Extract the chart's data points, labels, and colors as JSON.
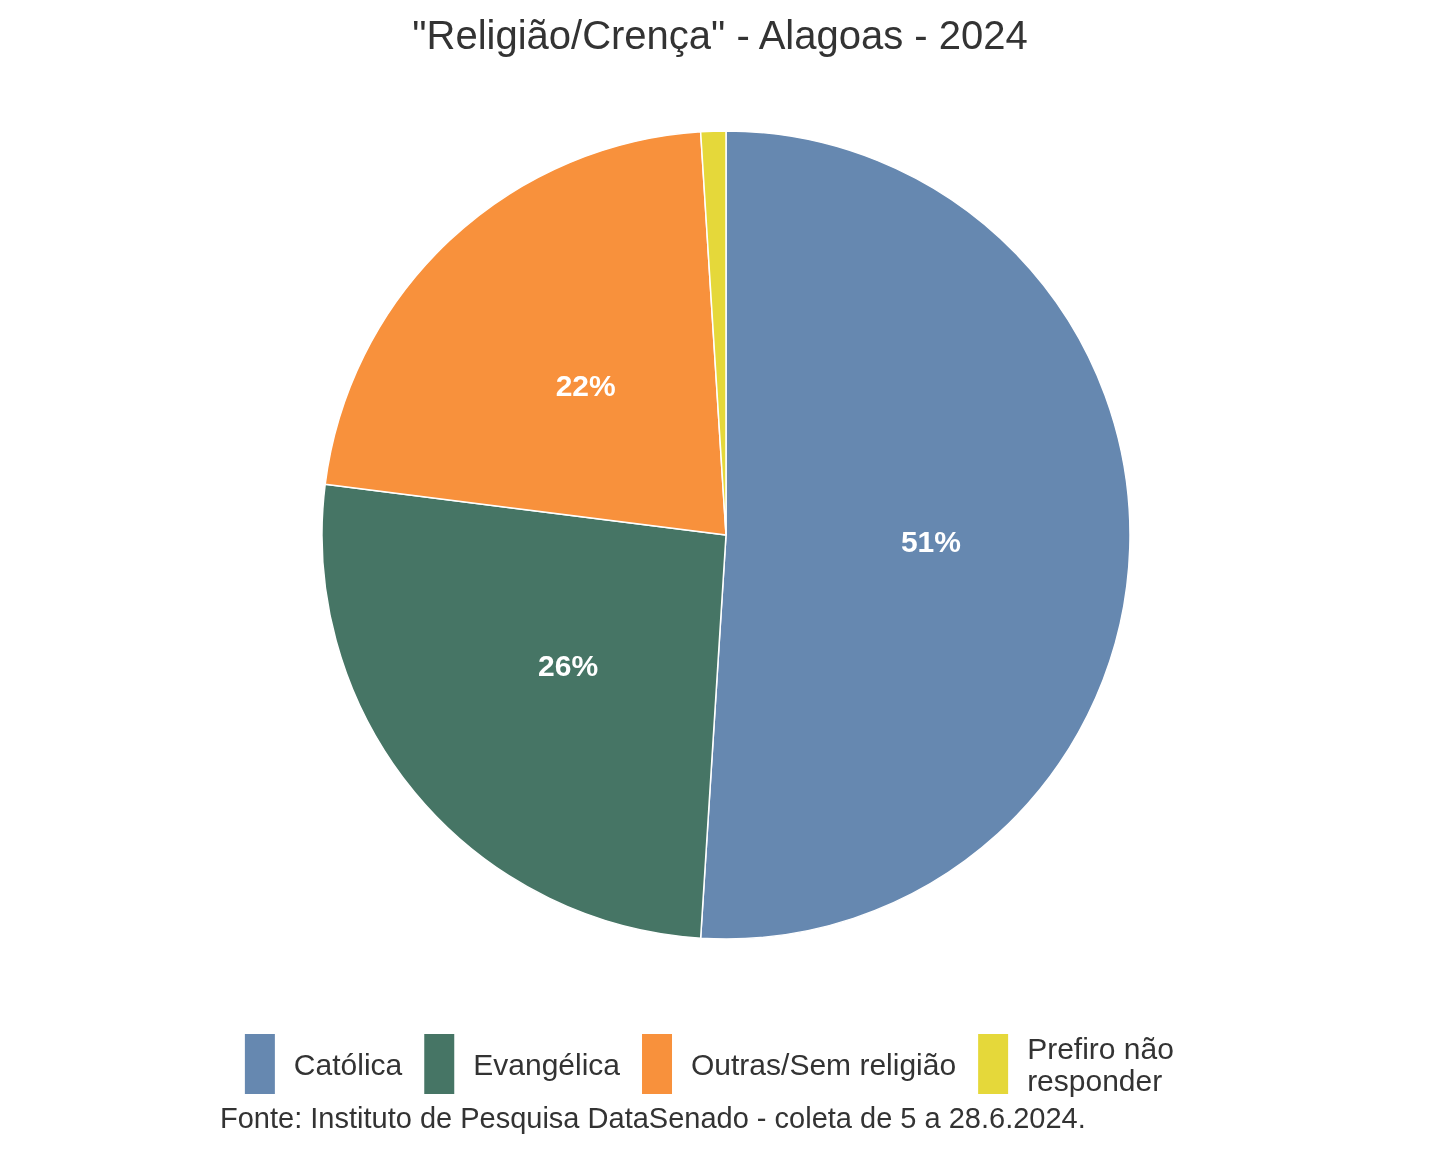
{
  "chart_data": {
    "type": "pie",
    "title": "\"Religião/Crença\" - Alagoas - 2024",
    "categories": [
      "Católica",
      "Evangélica",
      "Outras/Sem religião",
      "Prefiro não responder"
    ],
    "values": [
      51,
      26,
      22,
      1
    ],
    "colors": [
      "#6688b0",
      "#467565",
      "#f8913c",
      "#e5d83a"
    ],
    "value_labels": [
      "51%",
      "26%",
      "22%",
      null
    ],
    "legend": "bottom",
    "annotations": [
      "Fonte: Instituto de Pesquisa DataSenado - coleta de 5 a 28.6.2024."
    ]
  }
}
